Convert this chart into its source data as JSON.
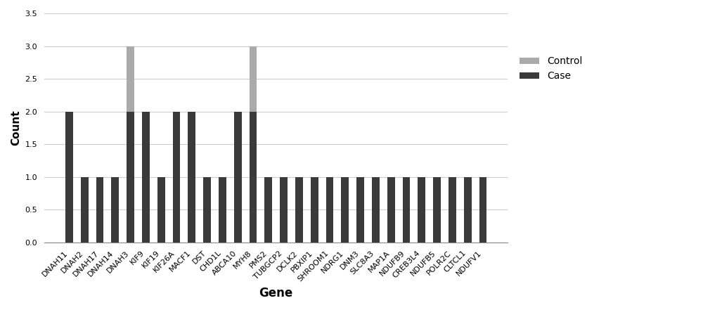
{
  "genes": [
    "DNAH11",
    "DNAH2",
    "DNAH17",
    "DNAH14",
    "DNAH3",
    "KIF9",
    "KIF19",
    "KIF26A",
    "MACF1",
    "DST",
    "CHD1L",
    "ABCA10",
    "MYH8",
    "PMS2",
    "TUBGCP2",
    "DCLK2",
    "PBXIP1",
    "SHROOM1",
    "NDRG1",
    "DNM3",
    "SLC8A3",
    "MAP1A",
    "NDUFB9",
    "CREB3L4",
    "NDUFB5",
    "POLR2C",
    "CLTCL1",
    "NDUFV1"
  ],
  "case_values": [
    2,
    1,
    1,
    1,
    2,
    2,
    1,
    2,
    2,
    1,
    1,
    2,
    2,
    1,
    1,
    1,
    1,
    1,
    1,
    1,
    1,
    1,
    1,
    1,
    1,
    1,
    1,
    1
  ],
  "control_values": [
    0,
    0,
    0,
    0,
    3,
    0,
    0,
    2,
    0,
    0,
    0,
    1,
    3,
    0,
    0,
    0,
    0,
    0,
    0,
    0,
    0,
    0,
    0,
    0,
    0,
    0,
    0,
    0
  ],
  "case_color": "#3a3a3a",
  "control_color": "#aaaaaa",
  "ylabel": "Count",
  "xlabel": "Gene",
  "ylim": [
    0,
    3.5
  ],
  "yticks": [
    0,
    0.5,
    1,
    1.5,
    2,
    2.5,
    3,
    3.5
  ],
  "background_color": "#ffffff",
  "legend_labels": [
    "Control",
    "Case"
  ],
  "legend_colors": [
    "#aaaaaa",
    "#3a3a3a"
  ],
  "bar_width": 0.5,
  "grid_color": "#cccccc",
  "tick_fontsize": 8,
  "ylabel_fontsize": 11,
  "xlabel_fontsize": 12
}
